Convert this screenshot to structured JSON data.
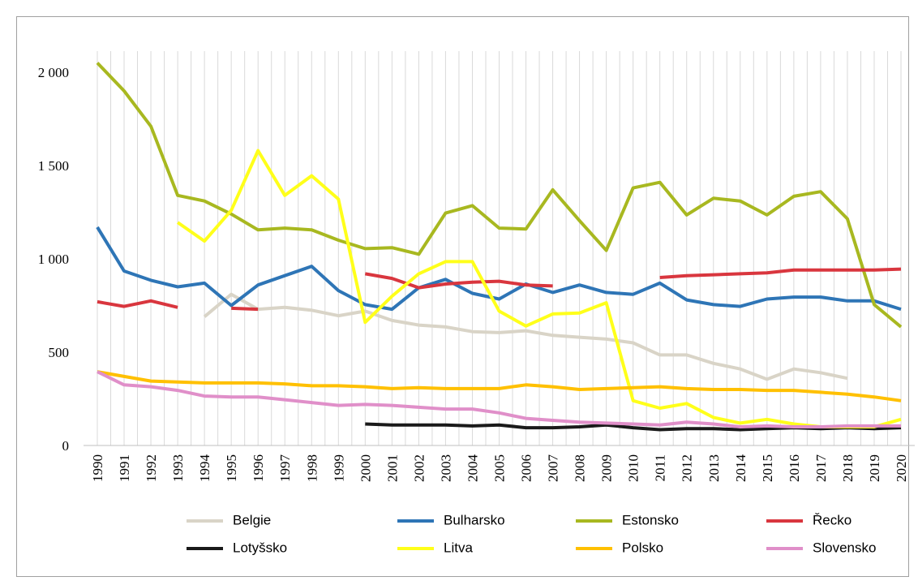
{
  "chart_data": {
    "type": "line",
    "categories": [
      "1990",
      "1991",
      "1992",
      "1993",
      "1994",
      "1995",
      "1996",
      "1997",
      "1998",
      "1999",
      "2000",
      "2001",
      "2002",
      "2003",
      "2004",
      "2005",
      "2006",
      "2007",
      "2008",
      "2009",
      "2010",
      "2011",
      "2012",
      "2013",
      "2014",
      "2015",
      "2016",
      "2017",
      "2018",
      "2019",
      "2020"
    ],
    "ylim": [
      0,
      2200
    ],
    "yticks": [
      0,
      500,
      {
        "value": 1000,
        "label": "1 000"
      },
      {
        "value": 1500,
        "label": "1 500"
      },
      {
        "value": 2000,
        "label": "2 000"
      }
    ],
    "grid": true,
    "legend": "bottom",
    "series": [
      {
        "name": "Belgie",
        "color": "#d9d4c7",
        "values": [
          null,
          null,
          null,
          null,
          690,
          810,
          730,
          740,
          725,
          695,
          720,
          670,
          645,
          635,
          610,
          605,
          615,
          590,
          580,
          570,
          550,
          485,
          485,
          440,
          410,
          355,
          410,
          390,
          360,
          null,
          null
        ]
      },
      {
        "name": "Bulharsko",
        "color": "#2e75b6",
        "values": [
          1170,
          935,
          885,
          850,
          870,
          750,
          860,
          910,
          960,
          830,
          755,
          730,
          845,
          890,
          815,
          785,
          865,
          820,
          860,
          820,
          810,
          870,
          780,
          755,
          745,
          785,
          795,
          795,
          775,
          775,
          730
        ]
      },
      {
        "name": "Estonsko",
        "color": "#a8b820",
        "values": [
          2050,
          1900,
          1710,
          1340,
          1310,
          1240,
          1155,
          1165,
          1155,
          1100,
          1055,
          1060,
          1025,
          1245,
          1285,
          1165,
          1160,
          1370,
          1205,
          1045,
          1380,
          1410,
          1235,
          1325,
          1310,
          1235,
          1335,
          1360,
          1215,
          755,
          635
        ]
      },
      {
        "name": "Řecko",
        "color": "#d9363e",
        "values": [
          770,
          745,
          775,
          740,
          null,
          735,
          730,
          null,
          null,
          null,
          920,
          895,
          845,
          865,
          875,
          880,
          860,
          855,
          null,
          null,
          null,
          900,
          910,
          915,
          920,
          925,
          940,
          940,
          940,
          940,
          945
        ]
      },
      {
        "name": "Lotyšsko",
        "color": "#1a1a1a",
        "values": [
          null,
          null,
          null,
          null,
          null,
          null,
          null,
          null,
          null,
          null,
          115,
          110,
          110,
          110,
          105,
          110,
          95,
          95,
          100,
          110,
          95,
          85,
          90,
          90,
          85,
          90,
          95,
          90,
          95,
          90,
          95
        ]
      },
      {
        "name": "Litva",
        "color": "#ffff1a",
        "values": [
          null,
          null,
          null,
          1195,
          1095,
          1260,
          1580,
          1340,
          1445,
          1320,
          660,
          800,
          920,
          985,
          985,
          720,
          640,
          705,
          710,
          765,
          240,
          200,
          225,
          150,
          120,
          140,
          115,
          100,
          100,
          100,
          140
        ]
      },
      {
        "name": "Polsko",
        "color": "#ffc000",
        "values": [
          395,
          370,
          345,
          340,
          335,
          335,
          335,
          330,
          320,
          320,
          315,
          305,
          310,
          305,
          305,
          305,
          325,
          315,
          300,
          305,
          310,
          315,
          305,
          300,
          300,
          295,
          295,
          285,
          275,
          260,
          240
        ]
      },
      {
        "name": "Slovensko",
        "color": "#e08fc9",
        "values": [
          395,
          325,
          315,
          295,
          265,
          260,
          260,
          245,
          230,
          215,
          220,
          215,
          205,
          195,
          195,
          175,
          145,
          135,
          125,
          120,
          115,
          110,
          125,
          115,
          100,
          105,
          100,
          100,
          105,
          105,
          105
        ]
      }
    ]
  }
}
